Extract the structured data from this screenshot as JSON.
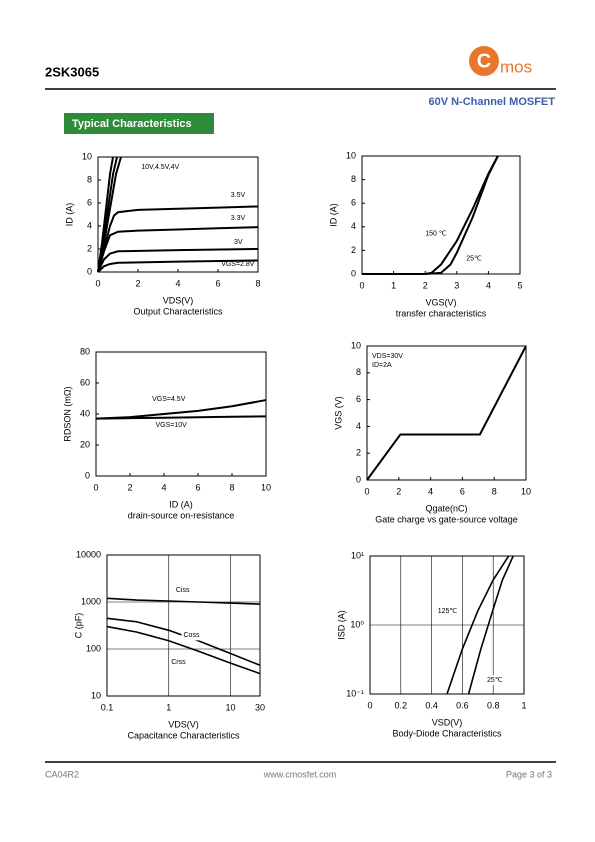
{
  "header": {
    "part": "2SK3065",
    "logo_letter": "C",
    "logo_text": "mos",
    "subtitle": "60V N-Channel MOSFET"
  },
  "section_title": "Typical Characteristics",
  "chart_data": [
    {
      "type": "line",
      "title": "Output Characteristics",
      "x_label": "VDS(V)",
      "y_label": "ID (A)",
      "xlim": [
        0,
        8
      ],
      "xticks": [
        0,
        2,
        4,
        6,
        8
      ],
      "ylim": [
        0,
        10
      ],
      "yticks": [
        0,
        2,
        4,
        6,
        8,
        10
      ],
      "series": [
        {
          "name": "10V,4.5V,4V",
          "color": "#000000",
          "x": [
            0,
            0.2,
            0.4,
            0.6,
            0.75
          ],
          "values": [
            0,
            2.5,
            5.5,
            8.5,
            10
          ]
        },
        {
          "color": "#000000",
          "x": [
            0,
            0.25,
            0.5,
            0.75,
            0.95
          ],
          "values": [
            0,
            2.5,
            5.5,
            8.5,
            10
          ]
        },
        {
          "color": "#000000",
          "x": [
            0,
            0.3,
            0.6,
            0.9,
            1.15
          ],
          "values": [
            0,
            2.5,
            5.5,
            8.5,
            10
          ]
        },
        {
          "name": "3.5V",
          "color": "#000000",
          "x": [
            0,
            0.3,
            0.6,
            0.8,
            1,
            2,
            4,
            6,
            8
          ],
          "values": [
            0,
            2,
            4,
            4.9,
            5.2,
            5.4,
            5.5,
            5.6,
            5.7
          ]
        },
        {
          "name": "3.3V",
          "color": "#000000",
          "x": [
            0,
            0.3,
            0.6,
            1,
            2,
            4,
            6,
            8
          ],
          "values": [
            0,
            1.8,
            3.2,
            3.5,
            3.6,
            3.7,
            3.8,
            3.9
          ]
        },
        {
          "name": "3V",
          "color": "#000000",
          "x": [
            0,
            0.3,
            0.6,
            1,
            4,
            8
          ],
          "values": [
            0,
            1.1,
            1.6,
            1.8,
            1.9,
            2.0
          ]
        },
        {
          "name": "VGS=2.8V",
          "color": "#000000",
          "x": [
            0,
            0.3,
            0.6,
            1,
            4,
            8
          ],
          "values": [
            0,
            0.5,
            0.7,
            0.8,
            0.9,
            1.0
          ]
        }
      ]
    },
    {
      "type": "line",
      "title": "transfer characteristics",
      "x_label": "VGS(V)",
      "y_label": "ID (A)",
      "xlim": [
        0,
        5
      ],
      "xticks": [
        0,
        1,
        2,
        3,
        4,
        5
      ],
      "ylim": [
        0,
        10
      ],
      "yticks": [
        0,
        2,
        4,
        6,
        8,
        10
      ],
      "series": [
        {
          "name": "150 ℃",
          "color": "#000000",
          "x": [
            0,
            1,
            2,
            2.2,
            2.5,
            3,
            3.5,
            4,
            4.3
          ],
          "values": [
            0,
            0,
            0,
            0.1,
            0.8,
            2.8,
            5.5,
            8.5,
            10
          ]
        },
        {
          "name": "25℃",
          "color": "#000000",
          "x": [
            0,
            2,
            2.5,
            2.8,
            3,
            3.5,
            4,
            4.3
          ],
          "values": [
            0,
            0,
            0.1,
            0.8,
            1.8,
            4.8,
            8.4,
            10
          ]
        }
      ]
    },
    {
      "type": "line",
      "title": "drain-source on-resistance",
      "x_label": "ID (A)",
      "y_label": "RDSON (mΩ)",
      "xlim": [
        0,
        10
      ],
      "xticks": [
        0,
        2,
        4,
        6,
        8,
        10
      ],
      "ylim": [
        0,
        80
      ],
      "yticks": [
        0,
        20,
        40,
        60,
        80
      ],
      "series": [
        {
          "name": "VGS=4.5V",
          "color": "#000000",
          "x": [
            0,
            2,
            4,
            6,
            8,
            10
          ],
          "values": [
            37,
            38,
            40,
            42,
            45,
            49
          ]
        },
        {
          "name": "VGS=10V",
          "color": "#000000",
          "x": [
            0,
            2,
            4,
            6,
            8,
            10
          ],
          "values": [
            37,
            37.3,
            37.6,
            37.9,
            38.2,
            38.5
          ]
        }
      ]
    },
    {
      "type": "line",
      "title": "Gate charge vs gate-source voltage",
      "x_label": "Qgate(nC)",
      "y_label": "VGS (V)",
      "notes": [
        "VDS=30V",
        "ID=2A"
      ],
      "xlim": [
        0,
        10
      ],
      "xticks": [
        0,
        2,
        4,
        6,
        8,
        10
      ],
      "ylim": [
        0,
        10
      ],
      "yticks": [
        0,
        2,
        4,
        6,
        8,
        10
      ],
      "series": [
        {
          "color": "#000000",
          "x": [
            0,
            2.1,
            7.1,
            10
          ],
          "values": [
            0,
            3.4,
            3.4,
            10
          ]
        }
      ]
    },
    {
      "type": "line",
      "title": "Capacitance Characteristics",
      "x_label": "VDS(V)",
      "y_label": "C (pF)",
      "xlog": true,
      "ylog": true,
      "grid": true,
      "xlim": [
        0.1,
        30
      ],
      "xticks": [
        0.1,
        1,
        10,
        30
      ],
      "ylim": [
        10,
        10000
      ],
      "yticks": [
        10,
        100,
        1000,
        10000
      ],
      "series": [
        {
          "name": "Ciss",
          "color": "#000000",
          "x": [
            0.1,
            0.3,
            1,
            3,
            10,
            30
          ],
          "values": [
            1200,
            1100,
            1050,
            1000,
            950,
            900
          ]
        },
        {
          "name": "Coss",
          "color": "#000000",
          "x": [
            0.1,
            0.3,
            1,
            3,
            10,
            30
          ],
          "values": [
            450,
            380,
            250,
            150,
            80,
            45
          ]
        },
        {
          "name": "Crss",
          "color": "#000000",
          "x": [
            0.1,
            0.3,
            1,
            3,
            10,
            30
          ],
          "values": [
            300,
            230,
            150,
            90,
            50,
            30
          ]
        }
      ]
    },
    {
      "type": "line",
      "title": "Body-Diode Characteristics",
      "x_label": "VSD(V)",
      "y_label": "ISD (A)",
      "ylog": true,
      "grid": true,
      "xlim": [
        0,
        1
      ],
      "xticks": [
        0,
        0.2,
        0.4,
        0.6,
        0.8,
        1
      ],
      "ylim": [
        0.1,
        10
      ],
      "yticks": [
        {
          "value": 0.1,
          "label": "10⁻¹"
        },
        {
          "value": 1,
          "label": "10⁰"
        },
        {
          "value": 10,
          "label": "10¹"
        }
      ],
      "series": [
        {
          "name": "125℃",
          "color": "#000000",
          "x": [
            0.5,
            0.6,
            0.7,
            0.8,
            0.9
          ],
          "values": [
            0.1,
            0.45,
            1.6,
            4.5,
            10
          ]
        },
        {
          "name": "25℃",
          "color": "#000000",
          "x": [
            0.64,
            0.72,
            0.8,
            0.86,
            0.93
          ],
          "values": [
            0.1,
            0.45,
            1.7,
            4.5,
            10
          ]
        }
      ]
    }
  ],
  "footer": {
    "code": "CA04R2",
    "url": "www.cmosfet.com",
    "page": "Page 3 of 3"
  }
}
